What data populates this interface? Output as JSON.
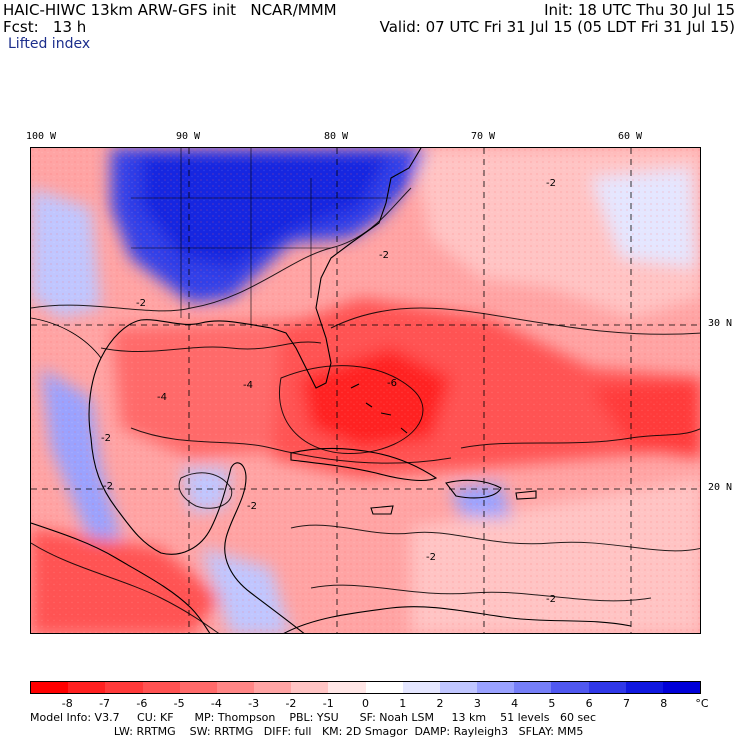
{
  "header": {
    "model_title": "HAIC-HIWC 13km ARW-GFS init   NCAR/MMM",
    "init_time": "Init: 18 UTC Thu 30 Jul 15",
    "forecast_hour": "Fcst:   13 h",
    "valid_time": "Valid: 07 UTC Fri 31 Jul 15 (05 LDT Fri 31 Jul 15)",
    "field_name": "Lifted index"
  },
  "map": {
    "longitude_labels": [
      "100 W",
      "90 W",
      "80 W",
      "70 W",
      "60 W"
    ],
    "latitude_labels": [
      "30 N",
      "20 N"
    ],
    "contour_labels": [
      "-2",
      "-2",
      "-4",
      "-2",
      "-6",
      "-2",
      "-2",
      "-4",
      "-2",
      "-2",
      "-2"
    ],
    "colors": {
      "stable_blue": "#2030e0",
      "unstable_red": "#ff2020",
      "neutral": "#ffffff"
    }
  },
  "colorbar": {
    "labels": [
      "-8",
      "-7",
      "-6",
      "-5",
      "-4",
      "-3",
      "-2",
      "-1",
      "0",
      "1",
      "2",
      "3",
      "4",
      "5",
      "6",
      "7",
      "8"
    ],
    "unit": "°C",
    "colors": [
      "#ff0000",
      "#ff2020",
      "#ff3a3a",
      "#ff5252",
      "#ff6a6a",
      "#ff8686",
      "#ffa4a4",
      "#ffc4c4",
      "#ffe6e6",
      "#ffffff",
      "#e4e6ff",
      "#c0c6ff",
      "#9aa2ff",
      "#767ff8",
      "#5058f0",
      "#3038e8",
      "#1018e0",
      "#0000d8"
    ]
  },
  "model_info": {
    "line1": "Model Info: V3.7     CU: KF      MP: Thompson    PBL: YSU      SF: Noah LSM     13 km    51 levels   60 sec",
    "line2": "                        LW: RRTMG    SW: RRTMG   DIFF: full   KM: 2D Smagor  DAMP: Rayleigh3   SFLAY: MM5"
  }
}
